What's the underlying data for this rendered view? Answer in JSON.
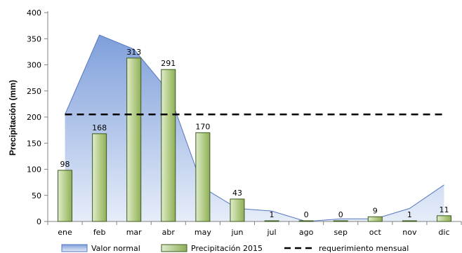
{
  "chart_data": {
    "type": "bar",
    "title": "",
    "xlabel": "",
    "ylabel": "Precipitación (mm)",
    "ylim": [
      0,
      400
    ],
    "yticks": [
      0,
      50,
      100,
      150,
      200,
      250,
      300,
      350,
      400
    ],
    "categories": [
      "ene",
      "feb",
      "mar",
      "abr",
      "may",
      "jun",
      "jul",
      "ago",
      "sep",
      "oct",
      "nov",
      "dic"
    ],
    "series": [
      {
        "name": "Valor normal",
        "kind": "area",
        "values": [
          205,
          357,
          330,
          250,
          65,
          25,
          20,
          0,
          5,
          5,
          25,
          70
        ]
      },
      {
        "name": "Precipitación 2015",
        "kind": "bar",
        "values": [
          98,
          168,
          313,
          291,
          170,
          43,
          1,
          0,
          0,
          9,
          1,
          11
        ]
      },
      {
        "name": "requerimiento mensual",
        "kind": "line",
        "values": [
          205,
          205,
          205,
          205,
          205,
          205,
          205,
          205,
          205,
          205,
          205,
          205
        ]
      }
    ],
    "legend_position": "bottom",
    "grid": false,
    "colors": {
      "area_top": "#7f9fdb",
      "area_bottom": "#e6edf9",
      "area_line": "#5577c0",
      "bar_fill_dark": "#8fae5a",
      "bar_fill_light": "#dfeccd",
      "bar_border": "#3c5a1e",
      "req_line": "#000000"
    }
  }
}
